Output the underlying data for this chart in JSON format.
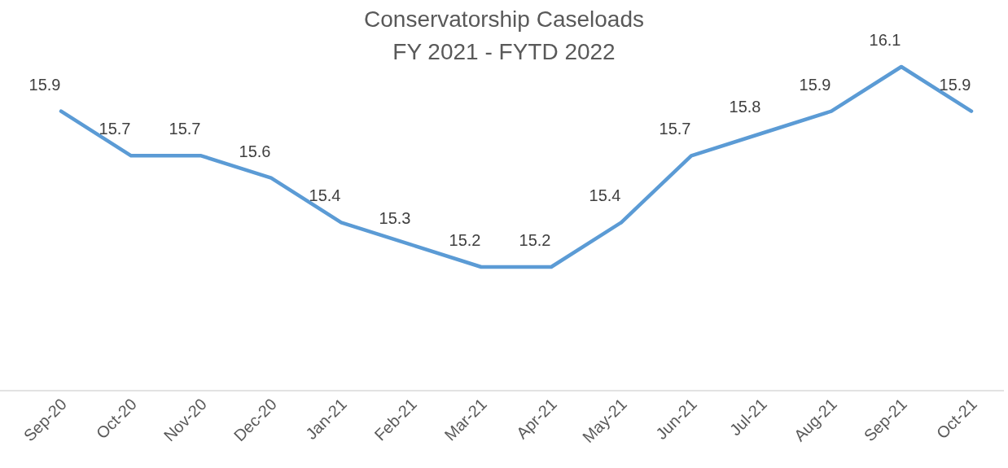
{
  "chart_data": {
    "type": "line",
    "title": "Conservatorship Caseloads",
    "subtitle": "FY 2021 - FYTD 2022",
    "categories": [
      "Sep-20",
      "Oct-20",
      "Nov-20",
      "Dec-20",
      "Jan-21",
      "Feb-21",
      "Mar-21",
      "Apr-21",
      "May-21",
      "Jun-21",
      "Jul-21",
      "Aug-21",
      "Sep-21",
      "Oct-21"
    ],
    "series": [
      {
        "color": "#5b9bd5",
        "values": [
          15.9,
          15.7,
          15.7,
          15.6,
          15.4,
          15.3,
          15.2,
          15.2,
          15.4,
          15.7,
          15.8,
          15.9,
          16.1,
          15.9
        ]
      }
    ],
    "tick_labels": "x",
    "data_labels": true,
    "marker": "none",
    "line_style": "solid"
  }
}
